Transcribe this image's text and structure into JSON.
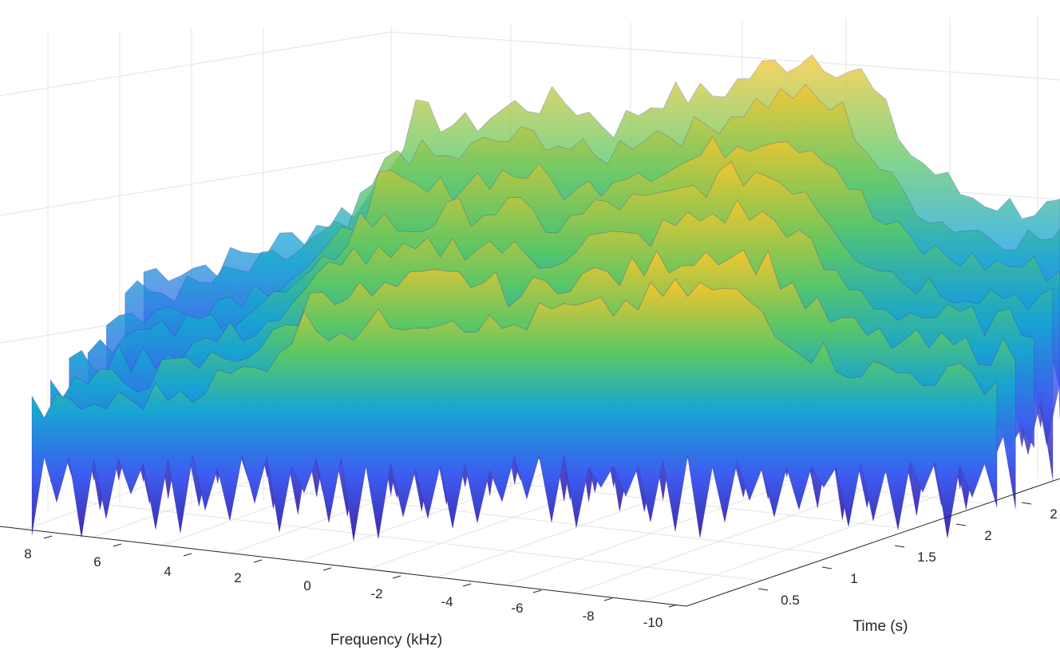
{
  "chart_data": {
    "type": "surface",
    "title": "",
    "xlabel": "Frequency (kHz)",
    "ylabel": "Time (s)",
    "zlabel": "",
    "x_ticks": [
      "8",
      "6",
      "4",
      "2",
      "0",
      "-2",
      "-4",
      "-6",
      "-8",
      "-10"
    ],
    "y_ticks": [
      "0.5",
      "1",
      "1.5",
      "2",
      "2"
    ],
    "xlim": [
      -10,
      10
    ],
    "ylim": [
      0,
      2.5
    ],
    "grid": true,
    "colormap": "parula",
    "colors": {
      "low": "#3e26a8",
      "mid": "#17a6d2",
      "high": "#f9c52b"
    },
    "ridge_profile": {
      "frequency_khz": [
        9.5,
        8,
        6.5,
        5,
        4,
        3,
        2,
        1,
        0,
        -1,
        -2,
        -3,
        -4,
        -5,
        -6,
        -7,
        -8,
        -9,
        -10
      ],
      "relative_level": [
        0.15,
        0.18,
        0.28,
        0.42,
        0.75,
        0.7,
        0.78,
        0.8,
        0.7,
        0.82,
        0.82,
        0.92,
        0.98,
        0.9,
        0.6,
        0.45,
        0.4,
        0.38,
        0.35
      ]
    }
  }
}
